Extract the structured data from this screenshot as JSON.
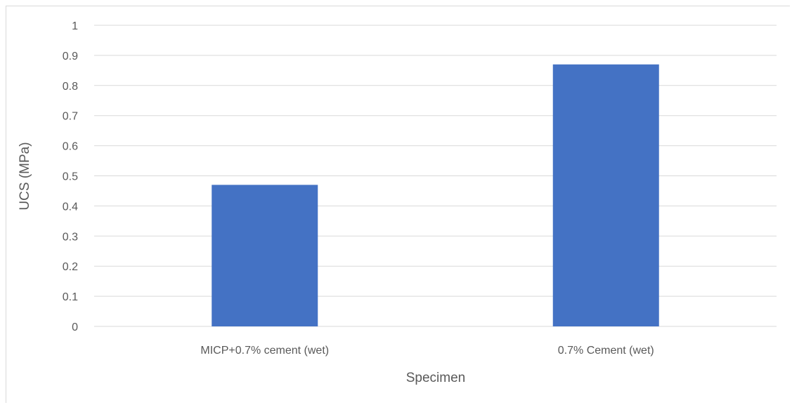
{
  "chart_data": {
    "type": "bar",
    "title": "",
    "xlabel": "Specimen",
    "ylabel": "UCS (MPa)",
    "categories": [
      "MICP+0.7% cement (wet)",
      "0.7% Cement (wet)"
    ],
    "values": [
      0.47,
      0.87
    ],
    "ylim": [
      0,
      1
    ],
    "yticks": [
      "0",
      "0.1",
      "0.2",
      "0.3",
      "0.4",
      "0.5",
      "0.6",
      "0.7",
      "0.8",
      "0.9",
      "1"
    ],
    "grid": true,
    "legend": "none"
  },
  "colors": {
    "bar": "#4472c4",
    "gridline": "#d9d9d9",
    "text": "#595959"
  }
}
